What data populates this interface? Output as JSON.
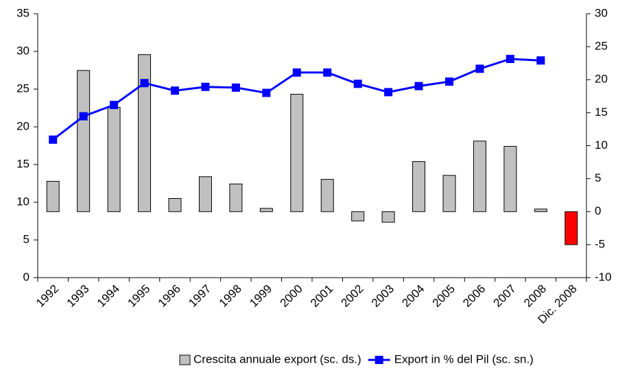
{
  "chart_data": {
    "type": "bar_line",
    "categories": [
      "1992",
      "1993",
      "1994",
      "1995",
      "1996",
      "1997",
      "1998",
      "1999",
      "2000",
      "2001",
      "2002",
      "2003",
      "2004",
      "2005",
      "2006",
      "2007",
      "2008",
      "Dic. 2008"
    ],
    "series": [
      {
        "name": "Crescita annuale export (sc. ds.)",
        "type": "bar",
        "axis": "y2",
        "color": "#c0c0c0",
        "colors": [
          "#c0c0c0",
          "#c0c0c0",
          "#c0c0c0",
          "#c0c0c0",
          "#c0c0c0",
          "#c0c0c0",
          "#c0c0c0",
          "#c0c0c0",
          "#c0c0c0",
          "#c0c0c0",
          "#c0c0c0",
          "#c0c0c0",
          "#c0c0c0",
          "#c0c0c0",
          "#c0c0c0",
          "#c0c0c0",
          "#c0c0c0",
          "#ff0000"
        ],
        "values": [
          4.6,
          21.4,
          15.8,
          23.8,
          2.0,
          5.3,
          4.2,
          0.5,
          17.8,
          4.9,
          -1.4,
          -1.6,
          7.6,
          5.5,
          10.7,
          9.9,
          0.4,
          -5.0
        ]
      },
      {
        "name": "Export in % del Pil (sc. sn.)",
        "type": "line",
        "axis": "y",
        "color": "#0000ff",
        "values": [
          18.3,
          21.4,
          22.9,
          25.8,
          24.8,
          25.3,
          25.2,
          24.5,
          27.2,
          27.2,
          25.7,
          24.6,
          25.4,
          26.0,
          27.7,
          29.0,
          28.8,
          null
        ]
      }
    ],
    "ylim": [
      0,
      35
    ],
    "yticks": [
      0,
      5,
      10,
      15,
      20,
      25,
      30,
      35
    ],
    "y2lim": [
      -10,
      30
    ],
    "y2ticks": [
      -10,
      -5,
      0,
      5,
      10,
      15,
      20,
      25,
      30
    ],
    "grid": false,
    "legend": "bottom"
  }
}
